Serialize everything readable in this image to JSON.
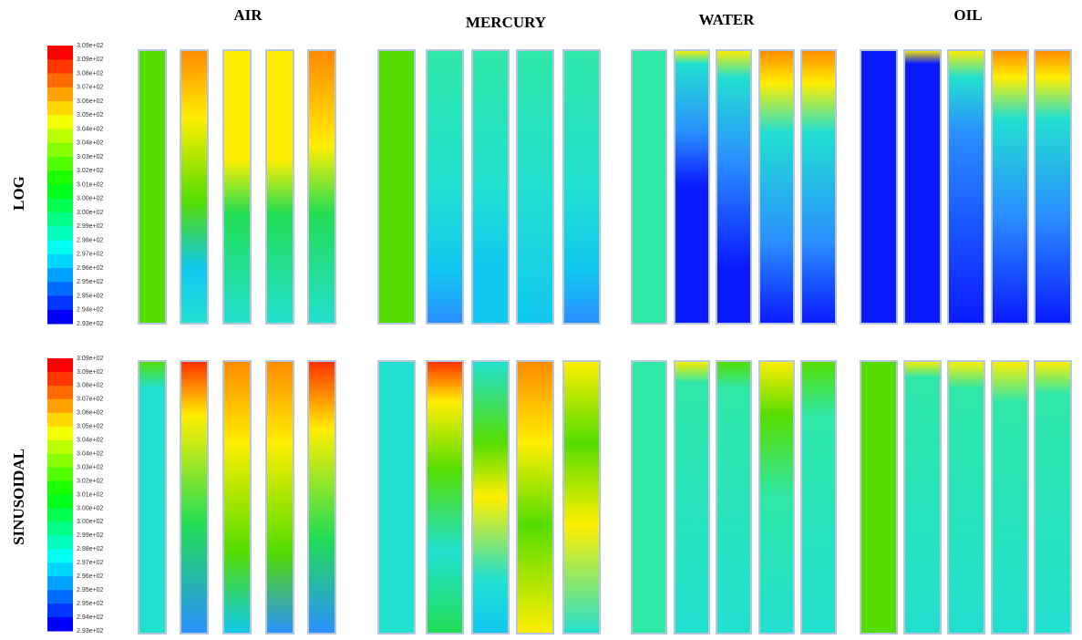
{
  "columns": [
    "AIR",
    "MERCURY",
    "WATER",
    "OIL"
  ],
  "rows": [
    {
      "label": "LOG",
      "colorbar": [
        "3.09e+02",
        "3.09e+02",
        "3.08e+02",
        "3.07e+02",
        "3.06e+02",
        "3.05e+02",
        "3.04e+02",
        "3.04e+02",
        "3.03e+02",
        "3.02e+02",
        "3.01e+02",
        "3.00e+02",
        "3.00e+02",
        "2.99e+02",
        "2.98e+02",
        "2.97e+02",
        "2.96e+02",
        "2.95e+02",
        "2.95e+02",
        "2.94e+02",
        "2.93e+02"
      ]
    },
    {
      "label": "SINUSOIDAL",
      "colorbar": [
        "3.09e+02",
        "3.09e+02",
        "3.08e+02",
        "3.07e+02",
        "3.06e+02",
        "3.05e+02",
        "3.04e+02",
        "3.04e+02",
        "3.03e+02",
        "3.02e+02",
        "3.01e+02",
        "3.00e+02",
        "3.00e+02",
        "2.99e+02",
        "2.98e+02",
        "2.97e+02",
        "2.96e+02",
        "2.95e+02",
        "2.95e+02",
        "2.94e+02",
        "2.93e+02"
      ]
    }
  ]
}
